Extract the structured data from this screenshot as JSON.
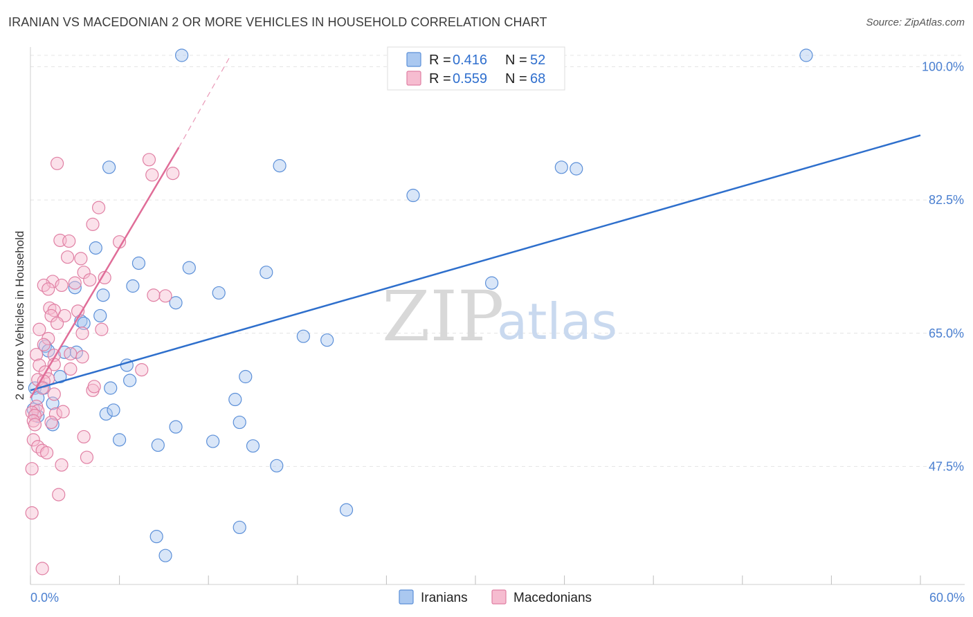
{
  "title": "IRANIAN VS MACEDONIAN 2 OR MORE VEHICLES IN HOUSEHOLD CORRELATION CHART",
  "source": "Source: ZipAtlas.com",
  "watermark": {
    "zip": "ZIP",
    "atlas": "atlas"
  },
  "colors": {
    "iranian_fill": "#aac8f0",
    "iranian_stroke": "#5b8fd8",
    "iranian_line": "#2e6fcc",
    "macedonian_fill": "#f6bcd0",
    "macedonian_stroke": "#e07fa3",
    "macedonian_line": "#e06d98"
  },
  "legend": {
    "r_label": "R =",
    "n_label": "N =",
    "iranian": {
      "r": "0.416",
      "n": "52"
    },
    "macedonian": {
      "r": "0.559",
      "n": "68"
    }
  },
  "chart_data": {
    "type": "scatter",
    "title": "IRANIAN VS MACEDONIAN 2 OR MORE VEHICLES IN HOUSEHOLD CORRELATION CHART",
    "xlabel": "",
    "ylabel": "2 or more Vehicles in Household",
    "xlim": [
      0,
      60
    ],
    "ylim": [
      32,
      101.5
    ],
    "x_tick_labels": [
      "0.0%",
      "60.0%"
    ],
    "y_ticks": [
      47.5,
      65.0,
      82.5,
      100.0
    ],
    "y_tick_labels": [
      "47.5%",
      "65.0%",
      "82.5%",
      "100.0%"
    ],
    "grid": true,
    "legend_position": "top-center",
    "series": [
      {
        "name": "Iranians",
        "points": [
          [
            10.2,
            101.5
          ],
          [
            52.3,
            101.5
          ],
          [
            5.3,
            86.8
          ],
          [
            16.8,
            87.0
          ],
          [
            35.8,
            86.8
          ],
          [
            36.8,
            86.6
          ],
          [
            25.8,
            83.1
          ],
          [
            4.4,
            76.2
          ],
          [
            7.3,
            74.2
          ],
          [
            10.7,
            73.6
          ],
          [
            15.9,
            73.0
          ],
          [
            3.0,
            71.0
          ],
          [
            6.9,
            71.2
          ],
          [
            4.9,
            70.0
          ],
          [
            12.7,
            70.3
          ],
          [
            9.8,
            69.0
          ],
          [
            31.1,
            71.6
          ],
          [
            4.7,
            67.3
          ],
          [
            3.4,
            66.6
          ],
          [
            3.6,
            66.3
          ],
          [
            18.4,
            64.6
          ],
          [
            20.0,
            64.1
          ],
          [
            1.0,
            63.3
          ],
          [
            1.2,
            62.7
          ],
          [
            2.3,
            62.5
          ],
          [
            3.1,
            62.5
          ],
          [
            6.5,
            60.8
          ],
          [
            6.7,
            58.8
          ],
          [
            2.0,
            59.3
          ],
          [
            14.5,
            59.3
          ],
          [
            0.3,
            57.8
          ],
          [
            0.9,
            57.8
          ],
          [
            5.4,
            57.8
          ],
          [
            0.5,
            56.5
          ],
          [
            1.5,
            55.8
          ],
          [
            13.8,
            56.3
          ],
          [
            5.1,
            54.4
          ],
          [
            5.6,
            54.9
          ],
          [
            0.5,
            54.1
          ],
          [
            0.2,
            55.0
          ],
          [
            1.5,
            53.0
          ],
          [
            9.8,
            52.7
          ],
          [
            14.1,
            53.3
          ],
          [
            6.0,
            51.0
          ],
          [
            8.6,
            50.3
          ],
          [
            12.3,
            50.8
          ],
          [
            15.0,
            50.2
          ],
          [
            16.6,
            47.6
          ],
          [
            21.3,
            41.8
          ],
          [
            8.5,
            38.3
          ],
          [
            14.1,
            39.5
          ],
          [
            9.1,
            35.8
          ]
        ],
        "trend": {
          "x": [
            0,
            60
          ],
          "y": [
            57.5,
            91.0
          ]
        }
      },
      {
        "name": "Macedonians",
        "points": [
          [
            1.8,
            87.3
          ],
          [
            8.0,
            87.8
          ],
          [
            8.2,
            85.8
          ],
          [
            4.6,
            81.5
          ],
          [
            4.2,
            79.3
          ],
          [
            2.0,
            77.2
          ],
          [
            2.6,
            77.1
          ],
          [
            2.5,
            75.0
          ],
          [
            3.4,
            74.8
          ],
          [
            3.6,
            73.0
          ],
          [
            1.5,
            71.8
          ],
          [
            0.9,
            71.3
          ],
          [
            2.1,
            71.3
          ],
          [
            3.0,
            71.6
          ],
          [
            4.0,
            72.0
          ],
          [
            1.2,
            70.8
          ],
          [
            3.2,
            67.9
          ],
          [
            1.3,
            68.3
          ],
          [
            1.6,
            68.0
          ],
          [
            1.4,
            67.3
          ],
          [
            2.3,
            67.3
          ],
          [
            1.8,
            66.3
          ],
          [
            4.8,
            65.5
          ],
          [
            3.5,
            65.0
          ],
          [
            0.6,
            65.5
          ],
          [
            1.2,
            64.3
          ],
          [
            0.9,
            63.5
          ],
          [
            0.4,
            62.2
          ],
          [
            1.6,
            62.1
          ],
          [
            2.7,
            62.3
          ],
          [
            3.5,
            61.9
          ],
          [
            1.6,
            60.9
          ],
          [
            0.6,
            60.8
          ],
          [
            2.7,
            60.3
          ],
          [
            1.0,
            59.9
          ],
          [
            1.2,
            59.0
          ],
          [
            0.5,
            58.9
          ],
          [
            0.9,
            58.7
          ],
          [
            0.8,
            57.8
          ],
          [
            1.6,
            57.0
          ],
          [
            4.2,
            57.5
          ],
          [
            0.4,
            55.4
          ],
          [
            0.5,
            54.8
          ],
          [
            0.1,
            54.6
          ],
          [
            0.3,
            54.2
          ],
          [
            1.7,
            54.4
          ],
          [
            2.2,
            54.7
          ],
          [
            0.2,
            53.5
          ],
          [
            0.3,
            53.0
          ],
          [
            1.4,
            53.3
          ],
          [
            3.6,
            51.4
          ],
          [
            0.2,
            51.0
          ],
          [
            0.5,
            50.1
          ],
          [
            0.8,
            49.6
          ],
          [
            1.1,
            49.3
          ],
          [
            3.8,
            48.7
          ],
          [
            2.1,
            47.7
          ],
          [
            0.1,
            47.2
          ],
          [
            1.9,
            43.8
          ],
          [
            0.1,
            41.4
          ],
          [
            0.8,
            34.1
          ],
          [
            9.1,
            69.9
          ],
          [
            8.3,
            70.0
          ],
          [
            9.6,
            86.0
          ],
          [
            6.0,
            77.0
          ],
          [
            5.0,
            72.3
          ],
          [
            7.5,
            60.2
          ],
          [
            4.3,
            58.0
          ]
        ],
        "trend": {
          "x": [
            0,
            10
          ],
          "y": [
            56.5,
            89.4
          ]
        },
        "trend_dashed": {
          "x": [
            10,
            13.5
          ],
          "y": [
            89.4,
            101.5
          ]
        }
      }
    ]
  }
}
